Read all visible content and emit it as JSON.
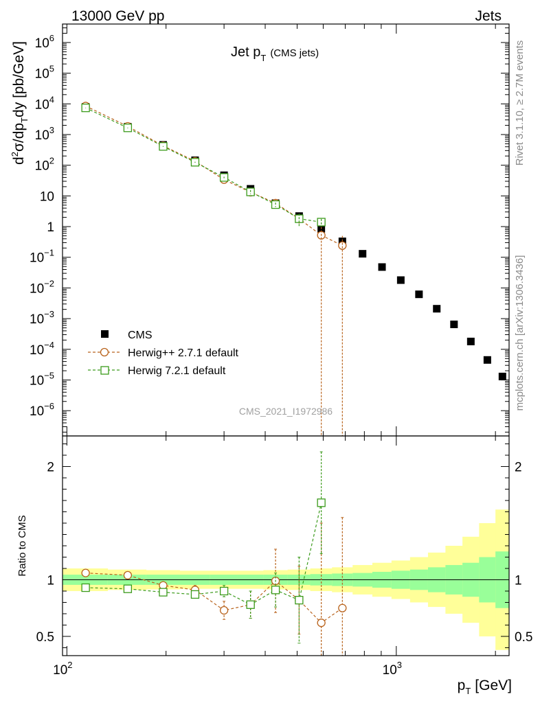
{
  "header": {
    "left": "13000 GeV pp",
    "right": "Jets"
  },
  "side_labels": {
    "upper": "Rivet 3.1.10, ≥ 2.7M events",
    "lower": "mcplots.cern.ch [arXiv:1306.3436]"
  },
  "chart_data": {
    "type": "scatter",
    "title": {
      "main": "Jet p",
      "sub": "T",
      "suffix": "(CMS jets)"
    },
    "watermark": "CMS_2021_I1972986",
    "xlabel": {
      "main": "p",
      "sub": "T",
      "suffix": "[GeV]"
    },
    "ylabel_main": {
      "pre": "d",
      "sup": "2",
      "mid": "σ/dp",
      "sub": "T",
      "post": "dy [pb/GeV]"
    },
    "ylabel_ratio": "Ratio to CMS",
    "x_scale": "log",
    "x_range": [
      97,
      2200
    ],
    "y_range_main": [
      1.5e-07,
      4000000.0
    ],
    "y_range_ratio": [
      0.33,
      2.27
    ],
    "x_tick_labels": [
      {
        "value": 100,
        "base": "10",
        "exp": "2"
      },
      {
        "value": 1000,
        "base": "10",
        "exp": "3"
      }
    ],
    "y_tick_labels_main": [
      {
        "value": 1000000.0,
        "base": "10",
        "exp": "6"
      },
      {
        "value": 100000.0,
        "base": "10",
        "exp": "5"
      },
      {
        "value": 10000.0,
        "base": "10",
        "exp": "4"
      },
      {
        "value": 1000.0,
        "base": "10",
        "exp": "3"
      },
      {
        "value": 100.0,
        "base": "10",
        "exp": "2"
      },
      {
        "value": 10,
        "base": "10",
        "exp": ""
      },
      {
        "value": 1,
        "base": "1",
        "exp": ""
      },
      {
        "value": 0.1,
        "base": "10",
        "exp": "−1"
      },
      {
        "value": 0.01,
        "base": "10",
        "exp": "−2"
      },
      {
        "value": 0.001,
        "base": "10",
        "exp": "−3"
      },
      {
        "value": 0.0001,
        "base": "10",
        "exp": "−4"
      },
      {
        "value": 1e-05,
        "base": "10",
        "exp": "−5"
      },
      {
        "value": 1e-06,
        "base": "10",
        "exp": "−6"
      }
    ],
    "y_tick_labels_ratio": [
      {
        "value": 0.5,
        "label": "0.5"
      },
      {
        "value": 1,
        "label": "1"
      },
      {
        "value": 2,
        "label": "2"
      }
    ],
    "legend": {
      "position": "lower-left"
    },
    "bin_edges": [
      97,
      133,
      174,
      220,
      272,
      330,
      395,
      468,
      548,
      638,
      737,
      846,
      967,
      1101,
      1248,
      1410,
      1588,
      1784,
      2000,
      2200
    ],
    "series": [
      {
        "name": "CMS",
        "color": "#000000",
        "marker": "filled-square",
        "x": [
          114,
          153,
          196,
          245,
          300,
          361,
          430,
          507,
          592,
          686,
          790,
          905,
          1032,
          1172,
          1327,
          1497,
          1684,
          1890,
          2100
        ],
        "y": [
          8000,
          1800,
          460,
          145,
          47,
          17,
          5.8,
          2.2,
          0.85,
          0.33,
          0.13,
          0.048,
          0.018,
          0.0062,
          0.0021,
          0.00065,
          0.00018,
          4.5e-05,
          1.3e-05
        ],
        "ratio_band_inner": [
          0.045,
          0.045,
          0.045,
          0.045,
          0.045,
          0.045,
          0.045,
          0.045,
          0.05,
          0.055,
          0.06,
          0.07,
          0.08,
          0.09,
          0.11,
          0.13,
          0.15,
          0.2,
          0.25
        ],
        "ratio_band_outer": [
          0.1,
          0.09,
          0.085,
          0.08,
          0.08,
          0.08,
          0.085,
          0.09,
          0.1,
          0.11,
          0.13,
          0.15,
          0.17,
          0.2,
          0.24,
          0.3,
          0.38,
          0.5,
          0.62
        ]
      },
      {
        "name": "Herwig++ 2.7.1 default",
        "color": "#b8621b",
        "marker": "open-circle",
        "x": [
          114,
          153,
          196,
          245,
          300,
          361,
          430,
          507,
          592,
          686
        ],
        "y": [
          8500,
          1850,
          430,
          135,
          34,
          13.2,
          5.8,
          1.8,
          0.52,
          0.24
        ],
        "ratio": [
          1.06,
          1.04,
          0.95,
          0.91,
          0.73,
          0.78,
          0.99,
          0.82,
          0.62,
          0.75
        ],
        "ratio_err": [
          0.02,
          0.02,
          0.03,
          0.04,
          0.08,
          0.12,
          0.28,
          0.3,
          0.88,
          0.8
        ]
      },
      {
        "name": "Herwig 7.2.1 default",
        "color": "#3a9a1a",
        "marker": "open-square",
        "x": [
          114,
          153,
          196,
          245,
          300,
          361,
          430,
          507,
          592
        ],
        "y": [
          7400,
          1650,
          410,
          125,
          40,
          13.5,
          5.2,
          1.8,
          1.4
        ],
        "ratio": [
          0.93,
          0.92,
          0.89,
          0.87,
          0.9,
          0.78,
          0.91,
          0.82,
          1.68
        ],
        "ratio_err": [
          0.015,
          0.02,
          0.025,
          0.03,
          0.05,
          0.12,
          0.15,
          0.38,
          0.45
        ]
      }
    ]
  }
}
